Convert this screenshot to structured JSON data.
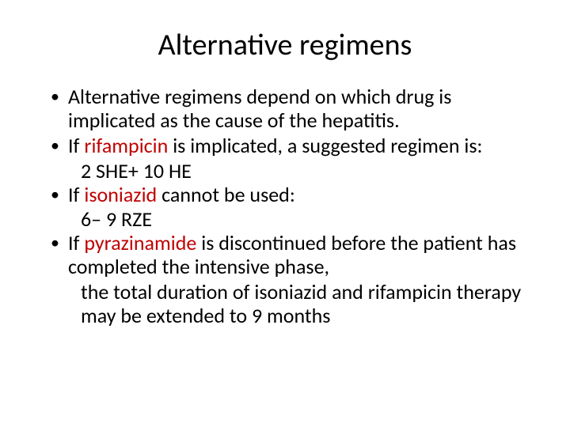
{
  "title": "Alternative regimens",
  "colors": {
    "emphasis": "#c00000",
    "text": "#000000",
    "background": "#ffffff"
  },
  "typography": {
    "title_fontsize": 38,
    "body_fontsize": 26,
    "font_family": "Calibri"
  },
  "bullets": [
    {
      "parts": [
        {
          "text": "Alternative regimens depend on which drug is implicated as the cause of the hepatitis.",
          "emph": false
        }
      ]
    },
    {
      "parts": [
        {
          "text": "If ",
          "emph": false
        },
        {
          "text": "rifampicin",
          "emph": true
        },
        {
          "text": " is implicated, a suggested regimen is:",
          "emph": false
        }
      ],
      "sub": "2 SHE+ 10 HE"
    },
    {
      "parts": [
        {
          "text": "If ",
          "emph": false
        },
        {
          "text": "isoniazid",
          "emph": true
        },
        {
          "text": " cannot be used:",
          "emph": false
        }
      ],
      "sub": "6– 9 RZE"
    },
    {
      "parts": [
        {
          "text": "If ",
          "emph": false
        },
        {
          "text": "pyrazinamide",
          "emph": true
        },
        {
          "text": " is discontinued before the patient has completed the intensive phase,",
          "emph": false
        }
      ],
      "sub": "the total duration of isoniazid and rifampicin therapy may be extended to 9 months"
    }
  ]
}
